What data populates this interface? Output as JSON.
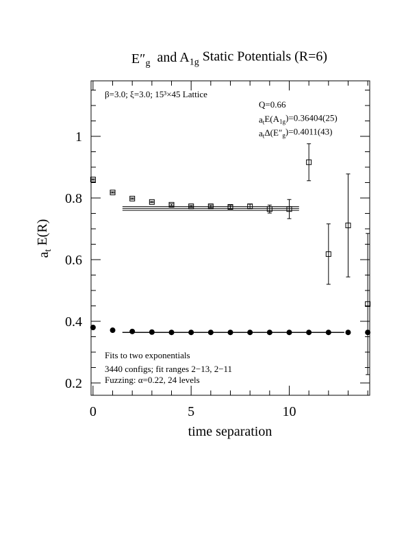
{
  "chart_data": {
    "type": "errorbar",
    "title": [
      "E″",
      "g",
      "  and A",
      "1g",
      " Static Potentials (R=6)"
    ],
    "x_label": "time separation",
    "y_label": [
      "a",
      "t",
      " E(R)"
    ],
    "xlim": [
      -0.1,
      14.1
    ],
    "ylim": [
      0.16,
      1.18
    ],
    "xticks": [
      0,
      5,
      10
    ],
    "xminorticks": [
      1,
      2,
      3,
      4,
      6,
      7,
      8,
      9,
      11,
      12,
      13,
      14
    ],
    "yticks": [
      0.2,
      0.4,
      0.6,
      0.8,
      1
    ],
    "yminorticks": [
      0.25,
      0.3,
      0.35,
      0.45,
      0.5,
      0.55,
      0.65,
      0.7,
      0.75,
      0.85,
      0.9,
      0.95,
      1.05,
      1.1,
      1.15
    ],
    "x": [
      0,
      1,
      2,
      3,
      4,
      5,
      6,
      7,
      8,
      9,
      10,
      11,
      12,
      13,
      14
    ],
    "series": [
      {
        "name": "A1g",
        "marker": "circle",
        "color": "#000000",
        "values": [
          0.38,
          0.371,
          0.367,
          0.365,
          0.364,
          0.364,
          0.364,
          0.364,
          0.364,
          0.364,
          0.364,
          0.364,
          0.364,
          0.364,
          0.364
        ],
        "errors": [
          0.002,
          0.002,
          0.002,
          0.002,
          0.002,
          0.002,
          0.002,
          0.002,
          0.002,
          0.002,
          0.002,
          0.002,
          0.002,
          0.003,
          0.003
        ],
        "fit": {
          "x": [
            1.5,
            12.8
          ],
          "value": 0.364,
          "error": 0.0005
        }
      },
      {
        "name": "E''g",
        "marker": "square",
        "color": "#000000",
        "values": [
          0.86,
          0.818,
          0.798,
          0.787,
          0.778,
          0.773,
          0.773,
          0.771,
          0.773,
          0.764,
          0.764,
          0.916,
          0.618,
          0.711,
          0.456
        ],
        "errors": [
          0.002,
          0.002,
          0.002,
          0.002,
          0.003,
          0.003,
          0.004,
          0.005,
          0.007,
          0.013,
          0.031,
          0.06,
          0.098,
          0.167,
          0.229
        ],
        "fit": {
          "x": [
            1.5,
            10.5
          ],
          "value": 0.766,
          "error": 0.006
        }
      }
    ],
    "annotations": {
      "lattice": "β=3.0; ξ=3.0; 15³×45 Lattice",
      "q": "Q=0.66",
      "energy": [
        "a",
        "t",
        "E(A",
        "1g",
        ")=0.36404(25)"
      ],
      "gap": [
        "a",
        "t",
        "Δ(E″",
        "g",
        ")=0.4011(43)"
      ],
      "fits": "Fits to two exponentials",
      "configs": "3440 configs; fit ranges 2−13, 2−11",
      "fuzzing": "Fuzzing: α=0.22, 24 levels"
    }
  }
}
